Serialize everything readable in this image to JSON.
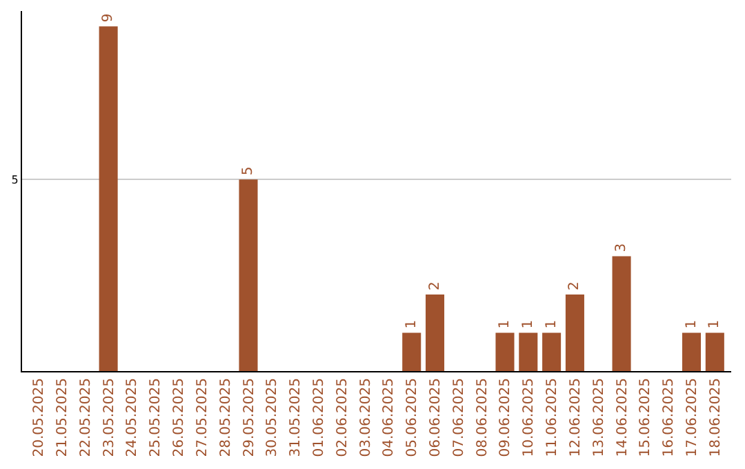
{
  "chart_data": {
    "type": "bar",
    "categories": [
      "20.05.2025",
      "21.05.2025",
      "22.05.2025",
      "23.05.2025",
      "24.05.2025",
      "25.05.2025",
      "26.05.2025",
      "27.05.2025",
      "28.05.2025",
      "29.05.2025",
      "30.05.2025",
      "31.05.2025",
      "01.06.2025",
      "02.06.2025",
      "03.06.2025",
      "04.06.2025",
      "05.06.2025",
      "06.06.2025",
      "07.06.2025",
      "08.06.2025",
      "09.06.2025",
      "10.06.2025",
      "11.06.2025",
      "12.06.2025",
      "13.06.2025",
      "14.06.2025",
      "15.06.2025",
      "16.06.2025",
      "17.06.2025",
      "18.06.2025"
    ],
    "values": [
      0,
      0,
      0,
      9,
      0,
      0,
      0,
      0,
      0,
      5,
      0,
      0,
      0,
      0,
      0,
      0,
      1,
      2,
      0,
      0,
      1,
      1,
      1,
      2,
      0,
      3,
      0,
      0,
      1,
      1
    ],
    "value_labels": [
      null,
      null,
      null,
      "9",
      null,
      null,
      null,
      null,
      null,
      "5",
      null,
      null,
      null,
      null,
      null,
      null,
      "1",
      "2",
      null,
      null,
      "1",
      "1",
      "1",
      "2",
      null,
      "3",
      null,
      null,
      "1",
      "1"
    ],
    "color": "#a0522d",
    "ylim": [
      0,
      9.4
    ],
    "yticks": [
      5
    ],
    "grid": "y",
    "legend": false
  }
}
